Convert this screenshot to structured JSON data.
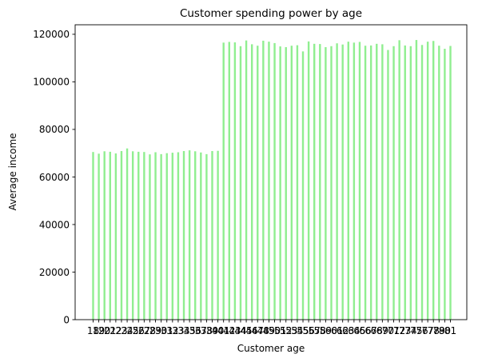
{
  "chart_data": {
    "type": "bar",
    "title": "Customer spending power by age",
    "xlabel": "Customer age",
    "ylabel": "Average income",
    "ylim": [
      0,
      124000
    ],
    "yticks": [
      0,
      20000,
      40000,
      60000,
      80000,
      100000,
      120000
    ],
    "grid": false,
    "bar_color": "#90ee90",
    "categories": [
      18,
      19,
      20,
      21,
      22,
      23,
      24,
      25,
      26,
      27,
      28,
      29,
      30,
      31,
      32,
      33,
      34,
      35,
      36,
      37,
      38,
      39,
      40,
      41,
      42,
      43,
      44,
      45,
      46,
      47,
      48,
      49,
      50,
      51,
      52,
      53,
      54,
      55,
      56,
      57,
      58,
      59,
      60,
      61,
      62,
      63,
      64,
      65,
      66,
      67,
      68,
      69,
      70,
      71,
      72,
      73,
      74,
      75,
      76,
      77,
      78,
      79,
      80,
      81
    ],
    "values": [
      70500,
      69800,
      70800,
      70600,
      69900,
      70900,
      72000,
      70800,
      70600,
      70500,
      69500,
      70400,
      69600,
      70000,
      70200,
      70400,
      70900,
      71200,
      70800,
      70300,
      69600,
      70900,
      71000,
      116500,
      116800,
      116600,
      115000,
      117400,
      115800,
      115200,
      117300,
      116900,
      116300,
      114900,
      114600,
      115200,
      115400,
      112800,
      117000,
      116000,
      115900,
      114600,
      115000,
      116200,
      115700,
      116900,
      116500,
      116800,
      115200,
      115300,
      116000,
      115800,
      113400,
      115000,
      117500,
      115300,
      115000,
      117600,
      115500,
      116900,
      117200,
      115200,
      113900,
      115100
    ]
  }
}
